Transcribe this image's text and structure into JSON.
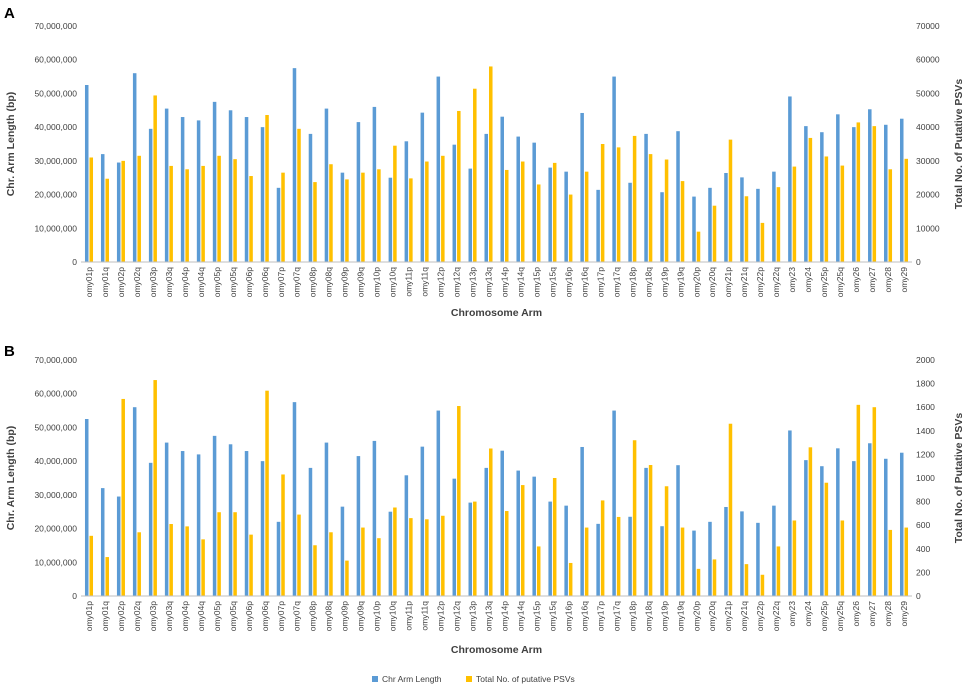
{
  "colors": {
    "length": "#5B9BD5",
    "psv": "#FFC000",
    "axis": "#BFBFBF",
    "text": "#404040"
  },
  "legend": {
    "series1": "Chr Arm Length",
    "series2": "Total No. of putative PSVs"
  },
  "chart_data": [
    {
      "panel": "A",
      "type": "bar",
      "xlabel": "Chromosome Arm",
      "ylabel": "Chr. Arm Length (bp)",
      "y2label": "Total No. of Putative PSVs",
      "ylim": [
        0,
        70000000
      ],
      "y2lim": [
        0,
        70000
      ],
      "yticks": [
        "0",
        "10,000,000",
        "20,000,000",
        "30,000,000",
        "40,000,000",
        "50,000,000",
        "60,000,000",
        "70,000,000"
      ],
      "y2ticks": [
        "0",
        "10000",
        "20000",
        "30000",
        "40000",
        "50000",
        "60000",
        "70000"
      ],
      "categories": [
        "omy01p",
        "omy01q",
        "omy02p",
        "omy02q",
        "omy03p",
        "omy03q",
        "omy04p",
        "omy04q",
        "omy05p",
        "omy05q",
        "omy06p",
        "omy06q",
        "omy07p",
        "omy07q",
        "omy08p",
        "omy08q",
        "omy09p",
        "omy09q",
        "omy10p",
        "omy10q",
        "omy11p",
        "omy11q",
        "omy12p",
        "omy12q",
        "omy13p",
        "omy13q",
        "omy14p",
        "omy14q",
        "omy15p",
        "omy15q",
        "omy16p",
        "omy16q",
        "omy17p",
        "omy17q",
        "omy18p",
        "omy18q",
        "omy19p",
        "omy19q",
        "omy20p",
        "omy20q",
        "omy21p",
        "omy21q",
        "omy22p",
        "omy22q",
        "omy23",
        "omy24",
        "omy25p",
        "omy25q",
        "omy26",
        "omy27",
        "omy28",
        "omy29"
      ],
      "series": [
        {
          "name": "Chr Arm Length",
          "axis": "left",
          "values": [
            52500000,
            32000000,
            29500000,
            56000000,
            39500000,
            45500000,
            43000000,
            42000000,
            47500000,
            45000000,
            43000000,
            40000000,
            22000000,
            57500000,
            38000000,
            45500000,
            26500000,
            41500000,
            46000000,
            25000000,
            35800000,
            44300000,
            55000000,
            34800000,
            27700000,
            38000000,
            43100000,
            37200000,
            35400000,
            28000000,
            26800000,
            44200000,
            21400000,
            55000000,
            23500000,
            38000000,
            20700000,
            38800000,
            19400000,
            22000000,
            26400000,
            25100000,
            21700000,
            26800000,
            49100000,
            40300000,
            38500000,
            43800000,
            40000000,
            45300000,
            40700000,
            42500000
          ]
        },
        {
          "name": "Total No. of putative PSVs",
          "axis": "right",
          "values": [
            31000,
            24700,
            30000,
            31500,
            49400,
            28500,
            27500,
            28500,
            31500,
            30500,
            25500,
            43600,
            26500,
            39500,
            23700,
            29000,
            24500,
            26500,
            27500,
            34500,
            24800,
            29800,
            31500,
            44800,
            51400,
            58000,
            27300,
            29800,
            23000,
            29400,
            20000,
            26800,
            35000,
            34000,
            37400,
            32000,
            30400,
            24000,
            9000,
            16700,
            36300,
            19500,
            11600,
            22200,
            28300,
            36800,
            31300,
            28600,
            41400,
            40300,
            27500,
            30600
          ]
        }
      ]
    },
    {
      "panel": "B",
      "type": "bar",
      "xlabel": "Chromosome Arm",
      "ylabel": "Chr. Arm Length (bp)",
      "y2label": "Total No. of Putative PSVs",
      "ylim": [
        0,
        70000000
      ],
      "y2lim": [
        0,
        2000
      ],
      "yticks": [
        "0",
        "10,000,000",
        "20,000,000",
        "30,000,000",
        "40,000,000",
        "50,000,000",
        "60,000,000",
        "70,000,000"
      ],
      "y2ticks": [
        "0",
        "200",
        "400",
        "600",
        "800",
        "1000",
        "1200",
        "1400",
        "1600",
        "1800",
        "2000"
      ],
      "categories": [
        "omy01p",
        "omy01q",
        "omy02p",
        "omy02q",
        "omy03p",
        "omy03q",
        "omy04p",
        "omy04q",
        "omy05p",
        "omy05q",
        "omy06p",
        "omy06q",
        "omy07p",
        "omy07q",
        "omy08p",
        "omy08q",
        "omy09p",
        "omy09q",
        "omy10p",
        "omy10q",
        "omy11p",
        "omy11q",
        "omy12p",
        "omy12q",
        "omy13p",
        "omy13q",
        "omy14p",
        "omy14q",
        "omy15p",
        "omy15q",
        "omy16p",
        "omy16q",
        "omy17p",
        "omy17q",
        "omy18p",
        "omy18q",
        "omy19p",
        "omy19q",
        "omy20p",
        "omy20q",
        "omy21p",
        "omy21q",
        "omy22p",
        "omy22q",
        "omy23",
        "omy24",
        "omy25p",
        "omy25q",
        "omy26",
        "omy27",
        "omy28",
        "omy29"
      ],
      "series": [
        {
          "name": "Chr Arm Length",
          "axis": "left",
          "values": [
            52500000,
            32000000,
            29500000,
            56000000,
            39500000,
            45500000,
            43000000,
            42000000,
            47500000,
            45000000,
            43000000,
            40000000,
            22000000,
            57500000,
            38000000,
            45500000,
            26500000,
            41500000,
            46000000,
            25000000,
            35800000,
            44300000,
            55000000,
            34800000,
            27700000,
            38000000,
            43100000,
            37200000,
            35400000,
            28000000,
            26800000,
            44200000,
            21400000,
            55000000,
            23500000,
            38000000,
            20700000,
            38800000,
            19400000,
            22000000,
            26400000,
            25100000,
            21700000,
            26800000,
            49100000,
            40300000,
            38500000,
            43800000,
            40000000,
            45300000,
            40700000,
            42500000
          ]
        },
        {
          "name": "Total No. of putative PSVs",
          "axis": "right",
          "values": [
            510,
            330,
            1670,
            540,
            1830,
            610,
            590,
            480,
            710,
            710,
            520,
            1740,
            1030,
            690,
            430,
            540,
            300,
            580,
            490,
            750,
            660,
            650,
            680,
            1610,
            800,
            1250,
            720,
            940,
            420,
            1000,
            280,
            580,
            810,
            670,
            1320,
            1110,
            930,
            580,
            230,
            310,
            1460,
            270,
            180,
            420,
            640,
            1260,
            960,
            640,
            1620,
            1600,
            560,
            580
          ]
        }
      ]
    }
  ]
}
